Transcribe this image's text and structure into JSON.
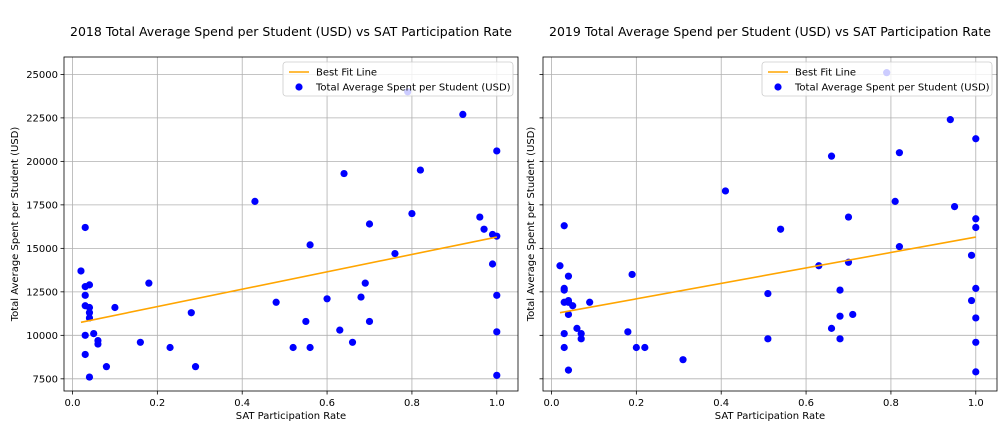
{
  "chart_data": [
    {
      "type": "scatter",
      "title": "2018 Total Average Spend per Student (USD) vs SAT Participation Rate",
      "xlabel": "SAT Participation Rate",
      "ylabel": "Total Average Spent per Student (USD)",
      "xlim": [
        -0.02,
        1.05
      ],
      "ylim": [
        6800,
        26000
      ],
      "xticks": [
        0.0,
        0.2,
        0.4,
        0.6,
        0.8,
        1.0
      ],
      "xtick_labels": [
        "0.0",
        "0.2",
        "0.4",
        "0.6",
        "0.8",
        "1.0"
      ],
      "yticks": [
        7500,
        10000,
        12500,
        15000,
        17500,
        20000,
        22500,
        25000
      ],
      "ytick_labels": [
        "7500",
        "10000",
        "12500",
        "15000",
        "17500",
        "20000",
        "22500",
        "25000"
      ],
      "grid": true,
      "legend_position": "top-right",
      "series": [
        {
          "name": "Best Fit Line",
          "kind": "line",
          "color": "#ffa500",
          "x": [
            0.02,
            1.0
          ],
          "y": [
            10750,
            15650
          ]
        },
        {
          "name": "Total Average Spent per Student (USD)",
          "kind": "scatter",
          "color": "#0000ff",
          "points": [
            [
              0.02,
              13700
            ],
            [
              0.03,
              16200
            ],
            [
              0.03,
              12800
            ],
            [
              0.03,
              12300
            ],
            [
              0.03,
              11700
            ],
            [
              0.03,
              10000
            ],
            [
              0.03,
              8900
            ],
            [
              0.04,
              12900
            ],
            [
              0.04,
              11600
            ],
            [
              0.04,
              11300
            ],
            [
              0.04,
              11000
            ],
            [
              0.04,
              7600
            ],
            [
              0.05,
              10100
            ],
            [
              0.06,
              9700
            ],
            [
              0.06,
              9500
            ],
            [
              0.08,
              8200
            ],
            [
              0.1,
              11600
            ],
            [
              0.16,
              9600
            ],
            [
              0.18,
              13000
            ],
            [
              0.23,
              9300
            ],
            [
              0.28,
              11300
            ],
            [
              0.29,
              8200
            ],
            [
              0.43,
              17700
            ],
            [
              0.48,
              11900
            ],
            [
              0.52,
              9300
            ],
            [
              0.55,
              10800
            ],
            [
              0.56,
              15200
            ],
            [
              0.56,
              9300
            ],
            [
              0.6,
              12100
            ],
            [
              0.63,
              10300
            ],
            [
              0.64,
              19300
            ],
            [
              0.66,
              9600
            ],
            [
              0.68,
              12200
            ],
            [
              0.69,
              13000
            ],
            [
              0.7,
              16400
            ],
            [
              0.7,
              10800
            ],
            [
              0.76,
              14700
            ],
            [
              0.79,
              24000
            ],
            [
              0.8,
              17000
            ],
            [
              0.82,
              19500
            ],
            [
              0.92,
              22700
            ],
            [
              0.96,
              16800
            ],
            [
              0.97,
              16100
            ],
            [
              0.99,
              15800
            ],
            [
              0.99,
              14100
            ],
            [
              1.0,
              20600
            ],
            [
              1.0,
              15700
            ],
            [
              1.0,
              12300
            ],
            [
              1.0,
              10200
            ],
            [
              1.0,
              7700
            ]
          ]
        }
      ]
    },
    {
      "type": "scatter",
      "title": "2019 Total Average Spend per Student (USD) vs SAT Participation Rate",
      "xlabel": "SAT Participation Rate",
      "ylabel": "Total Average Spent per Student (USD)",
      "xlim": [
        -0.02,
        1.05
      ],
      "ylim": [
        6800,
        26000
      ],
      "xticks": [
        0.0,
        0.2,
        0.4,
        0.6,
        0.8,
        1.0
      ],
      "xtick_labels": [
        "0.0",
        "0.2",
        "0.4",
        "0.6",
        "0.8",
        "1.0"
      ],
      "yticks": [
        7500,
        10000,
        12500,
        15000,
        17500,
        20000,
        22500,
        25000
      ],
      "ytick_labels": [],
      "grid": true,
      "legend_position": "top-right",
      "series": [
        {
          "name": "Best Fit Line",
          "kind": "line",
          "color": "#ffa500",
          "x": [
            0.02,
            1.0
          ],
          "y": [
            11300,
            15650
          ]
        },
        {
          "name": "Total Average Spent per Student (USD)",
          "kind": "scatter",
          "color": "#0000ff",
          "points": [
            [
              0.02,
              14000
            ],
            [
              0.03,
              16300
            ],
            [
              0.03,
              12700
            ],
            [
              0.03,
              12600
            ],
            [
              0.03,
              11900
            ],
            [
              0.03,
              10100
            ],
            [
              0.03,
              9300
            ],
            [
              0.04,
              13400
            ],
            [
              0.04,
              12000
            ],
            [
              0.04,
              11900
            ],
            [
              0.04,
              11200
            ],
            [
              0.04,
              8000
            ],
            [
              0.05,
              11700
            ],
            [
              0.06,
              10400
            ],
            [
              0.07,
              10100
            ],
            [
              0.07,
              9800
            ],
            [
              0.09,
              11900
            ],
            [
              0.18,
              10200
            ],
            [
              0.19,
              13500
            ],
            [
              0.2,
              9300
            ],
            [
              0.22,
              9300
            ],
            [
              0.31,
              8600
            ],
            [
              0.41,
              18300
            ],
            [
              0.51,
              12400
            ],
            [
              0.51,
              9800
            ],
            [
              0.54,
              16100
            ],
            [
              0.63,
              14000
            ],
            [
              0.66,
              20300
            ],
            [
              0.66,
              10400
            ],
            [
              0.68,
              12600
            ],
            [
              0.68,
              11100
            ],
            [
              0.68,
              9800
            ],
            [
              0.7,
              16800
            ],
            [
              0.7,
              14200
            ],
            [
              0.71,
              11200
            ],
            [
              0.79,
              25100
            ],
            [
              0.81,
              17700
            ],
            [
              0.82,
              20500
            ],
            [
              0.82,
              15100
            ],
            [
              0.94,
              22400
            ],
            [
              0.95,
              17400
            ],
            [
              0.99,
              14600
            ],
            [
              0.99,
              12000
            ],
            [
              1.0,
              21300
            ],
            [
              1.0,
              16700
            ],
            [
              1.0,
              16200
            ],
            [
              1.0,
              12700
            ],
            [
              1.0,
              11000
            ],
            [
              1.0,
              9600
            ],
            [
              1.0,
              7900
            ]
          ]
        }
      ]
    }
  ]
}
